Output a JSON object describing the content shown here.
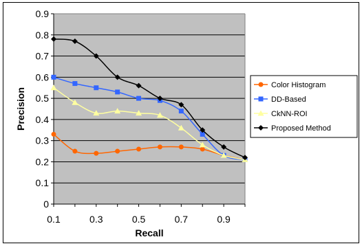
{
  "chart_data": {
    "type": "line",
    "title": "",
    "xlabel": "Recall",
    "ylabel": "Precision",
    "xlim": [
      0.1,
      1.0
    ],
    "ylim": [
      0,
      0.9
    ],
    "x_tick_labels": [
      "0.1",
      "0.3",
      "0.5",
      "0.7",
      "0.9"
    ],
    "x_tick_values": [
      0.1,
      0.3,
      0.5,
      0.7,
      0.9
    ],
    "y_tick_labels": [
      "0",
      "0.1",
      "0.2",
      "0.3",
      "0.4",
      "0.5",
      "0.6",
      "0.7",
      "0.8",
      "0.9"
    ],
    "y_tick_values": [
      0,
      0.1,
      0.2,
      0.3,
      0.4,
      0.5,
      0.6,
      0.7,
      0.8,
      0.9
    ],
    "grid": "horizontal",
    "plot_background": "#c0c0c0",
    "legend_position": "right",
    "x": [
      0.1,
      0.2,
      0.3,
      0.4,
      0.5,
      0.6,
      0.7,
      0.8,
      0.9,
      1.0
    ],
    "series": [
      {
        "name": "Color Histogram",
        "color": "#ff6600",
        "marker": "circle",
        "values": [
          0.33,
          0.25,
          0.24,
          0.25,
          0.26,
          0.27,
          0.27,
          0.26,
          0.23,
          0.21
        ]
      },
      {
        "name": "DD-Based",
        "color": "#3366ff",
        "marker": "square",
        "values": [
          0.6,
          0.57,
          0.55,
          0.53,
          0.5,
          0.49,
          0.44,
          0.33,
          0.23,
          0.21
        ]
      },
      {
        "name": "CkNN-ROI",
        "color": "#ffffa0",
        "marker": "triangle",
        "values": [
          0.55,
          0.48,
          0.43,
          0.44,
          0.43,
          0.42,
          0.36,
          0.28,
          0.23,
          0.21
        ]
      },
      {
        "name": "Proposed Method",
        "color": "#000000",
        "marker": "diamond",
        "values": [
          0.78,
          0.77,
          0.7,
          0.6,
          0.56,
          0.5,
          0.47,
          0.35,
          0.27,
          0.22
        ]
      }
    ]
  }
}
